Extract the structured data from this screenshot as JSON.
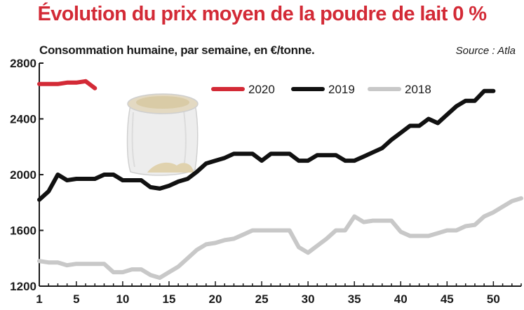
{
  "header": {
    "title": "Évolution du prix moyen de la poudre de lait 0 %",
    "subtitle": "Consommation humaine, par semaine, en €/tonne.",
    "source": "Source : Atla"
  },
  "colors": {
    "s2020": "#d32a36",
    "s2019": "#111111",
    "s2018": "#c8c8c8",
    "title": "#d32a36"
  },
  "chart_data": {
    "type": "line",
    "title": "Évolution du prix moyen de la poudre de lait 0 %",
    "subtitle": "Consommation humaine, par semaine, en €/tonne.",
    "xlabel": "",
    "ylabel": "",
    "xlim": [
      1,
      53
    ],
    "ylim": [
      1200,
      2800
    ],
    "xticks": [
      1,
      5,
      10,
      15,
      20,
      25,
      30,
      35,
      40,
      45,
      50
    ],
    "yticks": [
      1200,
      1600,
      2000,
      2400,
      2800
    ],
    "grid": false,
    "legend": "top",
    "series": [
      {
        "name": "2020",
        "x": [
          1,
          2,
          3,
          4,
          5,
          6,
          7
        ],
        "values": [
          2650,
          2650,
          2650,
          2660,
          2660,
          2670,
          2620
        ]
      },
      {
        "name": "2019",
        "x": [
          1,
          2,
          3,
          4,
          5,
          6,
          7,
          8,
          9,
          10,
          11,
          12,
          13,
          14,
          15,
          16,
          17,
          18,
          19,
          20,
          21,
          22,
          23,
          24,
          25,
          26,
          27,
          28,
          29,
          30,
          31,
          32,
          33,
          34,
          35,
          36,
          37,
          38,
          39,
          40,
          41,
          42,
          43,
          44,
          45,
          46,
          47,
          48,
          49,
          50
        ],
        "values": [
          1820,
          1880,
          2000,
          1960,
          1970,
          1970,
          1970,
          2000,
          2000,
          1960,
          1960,
          1960,
          1910,
          1900,
          1920,
          1950,
          1970,
          2020,
          2080,
          2100,
          2120,
          2150,
          2150,
          2150,
          2100,
          2150,
          2150,
          2150,
          2100,
          2100,
          2140,
          2140,
          2140,
          2100,
          2100,
          2130,
          2160,
          2190,
          2250,
          2300,
          2350,
          2350,
          2400,
          2370,
          2430,
          2490,
          2530,
          2530,
          2600,
          2600
        ]
      },
      {
        "name": "2018",
        "x": [
          1,
          2,
          3,
          4,
          5,
          6,
          7,
          8,
          9,
          10,
          11,
          12,
          13,
          14,
          15,
          16,
          17,
          18,
          19,
          20,
          21,
          22,
          23,
          24,
          25,
          26,
          27,
          28,
          29,
          30,
          31,
          32,
          33,
          34,
          35,
          36,
          37,
          38,
          39,
          40,
          41,
          42,
          43,
          44,
          45,
          46,
          47,
          48,
          49,
          50,
          51,
          52,
          53
        ],
        "values": [
          1380,
          1370,
          1370,
          1350,
          1360,
          1360,
          1360,
          1360,
          1300,
          1300,
          1320,
          1320,
          1280,
          1260,
          1300,
          1340,
          1400,
          1460,
          1500,
          1510,
          1530,
          1540,
          1570,
          1600,
          1600,
          1600,
          1600,
          1600,
          1480,
          1440,
          1490,
          1540,
          1600,
          1600,
          1700,
          1660,
          1670,
          1670,
          1670,
          1590,
          1560,
          1560,
          1560,
          1580,
          1600,
          1600,
          1630,
          1640,
          1700,
          1730,
          1770,
          1810,
          1830
        ]
      }
    ]
  }
}
